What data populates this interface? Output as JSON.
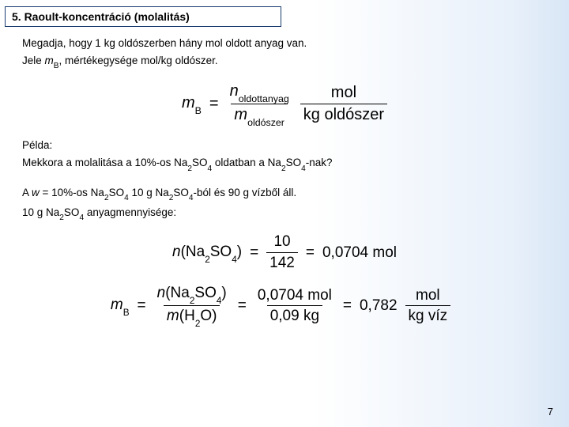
{
  "title": "5. Raoult-koncentráció (molalitás)",
  "intro": {
    "line1": "Megadja, hogy 1 kg oldószerben hány mol oldott anyag van.",
    "line2_pre": "Jele ",
    "line2_sym": "m",
    "line2_sub": "B",
    "line2_post": ", mértékegysége mol/kg oldószer."
  },
  "formula1": {
    "lhs_m": "m",
    "lhs_sub": "B",
    "eq": "=",
    "num_n": "n",
    "num_sub": "oldottanyag",
    "den_m": "m",
    "den_sub": "oldószer",
    "unit_num": "mol",
    "unit_den": "kg oldószer"
  },
  "example": {
    "label": "Példa:",
    "q_pre": "Mekkora a molalitása a 10%-os Na",
    "q_s1": "2",
    "q_mid1": "SO",
    "q_s2": "4",
    "q_mid2": " oldatban a Na",
    "q_s3": "2",
    "q_mid3": "SO",
    "q_s4": "4",
    "q_post": "-nak?"
  },
  "line_a": {
    "pre": "A ",
    "w": "w",
    "mid1": " = 10%-os Na",
    "s1": "2",
    "mid2": "SO",
    "s2": "4",
    "mid3": " 10 g Na",
    "s3": "2",
    "mid4": "SO",
    "s4": "4",
    "post": "-ból és 90 g vízből áll."
  },
  "line_b": {
    "pre": "10 g Na",
    "s1": "2",
    "mid1": "SO",
    "s2": "4",
    "post": " anyagmennyisége:"
  },
  "formula2": {
    "n": "n",
    "lpar": "(Na",
    "s1": "2",
    "so": "SO",
    "s2": "4",
    "rpar": ")",
    "eq": "=",
    "num": "10",
    "den": "142",
    "eq2": "=",
    "res": "0,0704 mol"
  },
  "formula3": {
    "m": "m",
    "sub": "B",
    "eq": "=",
    "num_n": "n",
    "num_par": "(Na",
    "num_s1": "2",
    "num_so": "SO",
    "num_s2": "4",
    "num_rp": ")",
    "den_m": "m",
    "den_par": "(H",
    "den_s1": "2",
    "den_o": "O)",
    "eq2": "=",
    "val_num": "0,0704 mol",
    "val_den": "0,09 kg",
    "eq3": "=",
    "res": "0,782",
    "unit_num": "mol",
    "unit_den": "kg víz"
  },
  "page": "7",
  "colors": {
    "border": "#1a3a6e",
    "text": "#000000",
    "bg_start": "#ffffff",
    "bg_end": "#d8e6f5"
  }
}
